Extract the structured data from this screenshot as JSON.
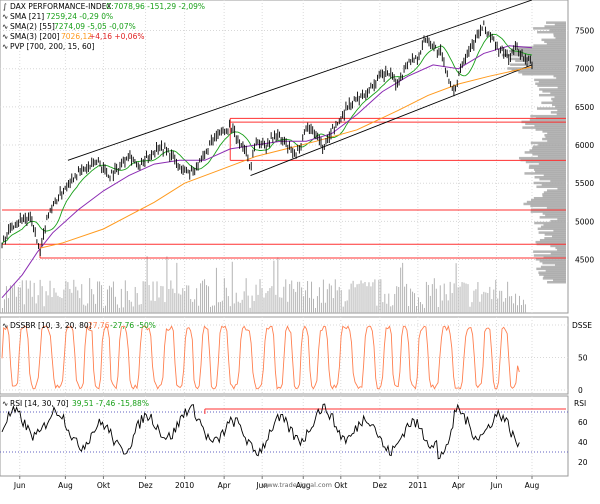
{
  "header": {
    "main_title": "DAX PERFORMANCE-INDEX",
    "main_close": "C:7078,96 -151,29 -2,09%",
    "sma1_name": "SMA [21]",
    "sma1_vals": "7259,24 -0,29 0%",
    "sma2_name": "SMA(2) [55]",
    "sma2_vals": "7274,09 -5,05 -0,07%",
    "sma3_name": "SMA(3) [200]",
    "sma3_val": "7026,12",
    "sma3_change": "+4,16 +0,06%",
    "pvp": "PVP [700, 200, 15, 60]",
    "ds_name": "DSSBR [10, 3, 20, 80]",
    "ds_val": "27,76",
    "ds_change": "-27,76 -50%",
    "rsi_name": "RSI [14, 30, 70]",
    "rsi_vals": "39,51 -7,46 -15,88%",
    "ds_tag": "DSSE",
    "rsi_tag": "RSI",
    "watermark": "www.tradesignal.com"
  },
  "colors": {
    "price": "#000000",
    "sma21": "#19a019",
    "sma55": "#8b2bb3",
    "sma200": "#ff9a1e",
    "channel": "#000000",
    "support": "#ff3030",
    "volume": "#b4b4b4",
    "profile": "#a8a8a8",
    "stoch": "#ff7f4f",
    "rsi": "#000000",
    "rsi_upper_line": "#ff3030",
    "rsi_bounds": "#6060c0",
    "background": "#ffffff"
  },
  "chart_data": {
    "type": "line",
    "price_axis": {
      "ticks": [
        4500,
        5000,
        5500,
        6000,
        6500,
        7000,
        7500
      ],
      "range": [
        3800,
        7900
      ]
    },
    "x_axis": {
      "ticks": [
        {
          "label": "Jun",
          "t": 0.035
        },
        {
          "label": "Aug",
          "t": 0.125
        },
        {
          "label": "Okt",
          "t": 0.2
        },
        {
          "label": "Dez",
          "t": 0.283
        },
        {
          "label": "2010",
          "t": 0.36
        },
        {
          "label": "Apr",
          "t": 0.438
        },
        {
          "label": "Jun",
          "t": 0.513
        },
        {
          "label": "Aug",
          "t": 0.594
        },
        {
          "label": "Okt",
          "t": 0.668
        },
        {
          "label": "Dez",
          "t": 0.745
        },
        {
          "label": "2011",
          "t": 0.82
        },
        {
          "label": "Apr",
          "t": 0.9
        },
        {
          "label": "Jun",
          "t": 0.975
        },
        {
          "label": "Aug",
          "t": 1.045
        }
      ]
    },
    "price_path": [
      [
        0.0,
        4700
      ],
      [
        0.02,
        4950
      ],
      [
        0.04,
        5050
      ],
      [
        0.06,
        5000
      ],
      [
        0.075,
        4550
      ],
      [
        0.09,
        5100
      ],
      [
        0.11,
        5300
      ],
      [
        0.13,
        5500
      ],
      [
        0.15,
        5650
      ],
      [
        0.17,
        5700
      ],
      [
        0.19,
        5800
      ],
      [
        0.21,
        5600
      ],
      [
        0.23,
        5700
      ],
      [
        0.25,
        5900
      ],
      [
        0.27,
        5700
      ],
      [
        0.29,
        5850
      ],
      [
        0.31,
        6000
      ],
      [
        0.33,
        5900
      ],
      [
        0.35,
        5700
      ],
      [
        0.37,
        5650
      ],
      [
        0.39,
        5750
      ],
      [
        0.41,
        6000
      ],
      [
        0.43,
        6150
      ],
      [
        0.45,
        6250
      ],
      [
        0.465,
        6050
      ],
      [
        0.48,
        5950
      ],
      [
        0.49,
        5700
      ],
      [
        0.5,
        6050
      ],
      [
        0.52,
        6000
      ],
      [
        0.54,
        6150
      ],
      [
        0.56,
        6000
      ],
      [
        0.58,
        5850
      ],
      [
        0.6,
        6250
      ],
      [
        0.62,
        6150
      ],
      [
        0.635,
        5950
      ],
      [
        0.65,
        6200
      ],
      [
        0.665,
        6300
      ],
      [
        0.68,
        6500
      ],
      [
        0.7,
        6600
      ],
      [
        0.72,
        6700
      ],
      [
        0.74,
        6850
      ],
      [
        0.76,
        6950
      ],
      [
        0.78,
        6800
      ],
      [
        0.8,
        7100
      ],
      [
        0.82,
        7150
      ],
      [
        0.835,
        7400
      ],
      [
        0.85,
        7300
      ],
      [
        0.865,
        7200
      ],
      [
        0.88,
        6900
      ],
      [
        0.89,
        6650
      ],
      [
        0.905,
        7050
      ],
      [
        0.92,
        7250
      ],
      [
        0.935,
        7400
      ],
      [
        0.95,
        7550
      ],
      [
        0.965,
        7400
      ],
      [
        0.98,
        7250
      ],
      [
        1.0,
        7150
      ],
      [
        1.015,
        7300
      ],
      [
        1.03,
        7100
      ],
      [
        1.045,
        7080
      ]
    ],
    "sma55_path": [
      [
        0.0,
        4000
      ],
      [
        0.04,
        4300
      ],
      [
        0.07,
        4600
      ],
      [
        0.1,
        4850
      ],
      [
        0.15,
        5150
      ],
      [
        0.2,
        5400
      ],
      [
        0.25,
        5600
      ],
      [
        0.3,
        5750
      ],
      [
        0.35,
        5800
      ],
      [
        0.4,
        5800
      ],
      [
        0.45,
        5950
      ],
      [
        0.5,
        6000
      ],
      [
        0.55,
        6050
      ],
      [
        0.6,
        6050
      ],
      [
        0.65,
        6150
      ],
      [
        0.7,
        6400
      ],
      [
        0.75,
        6700
      ],
      [
        0.8,
        6900
      ],
      [
        0.85,
        7050
      ],
      [
        0.9,
        7000
      ],
      [
        0.95,
        7200
      ],
      [
        1.0,
        7300
      ],
      [
        1.045,
        7275
      ]
    ],
    "sma200_path": [
      [
        0.075,
        4650
      ],
      [
        0.12,
        4720
      ],
      [
        0.2,
        4900
      ],
      [
        0.3,
        5250
      ],
      [
        0.36,
        5500
      ],
      [
        0.42,
        5650
      ],
      [
        0.5,
        5850
      ],
      [
        0.56,
        5950
      ],
      [
        0.62,
        6050
      ],
      [
        0.7,
        6200
      ],
      [
        0.78,
        6450
      ],
      [
        0.84,
        6650
      ],
      [
        0.9,
        6800
      ],
      [
        0.96,
        6900
      ],
      [
        1.0,
        6960
      ],
      [
        1.045,
        7026
      ]
    ],
    "channel_upper": [
      [
        0.13,
        5800
      ],
      [
        1.045,
        7900
      ]
    ],
    "channel_lower": [
      [
        0.49,
        5600
      ],
      [
        1.045,
        7050
      ]
    ],
    "support_levels": [
      {
        "level": 6350,
        "from": 0.45
      },
      {
        "level": 6300,
        "from": 0.45
      },
      {
        "level": 5800,
        "from": 0.45
      },
      {
        "level": 5150,
        "from": 0.0
      },
      {
        "level": 4700,
        "from": 0.0
      },
      {
        "level": 4520,
        "from": 0.075
      }
    ],
    "volume_profile_levels": [
      4200,
      7600
    ],
    "stochastic": {
      "axis_ticks": [
        0,
        50
      ],
      "last": 27.76
    },
    "rsi": {
      "axis_ticks": [
        20,
        40,
        60
      ],
      "upper_band": 70,
      "lower_band": 30,
      "last": 39.51
    }
  }
}
